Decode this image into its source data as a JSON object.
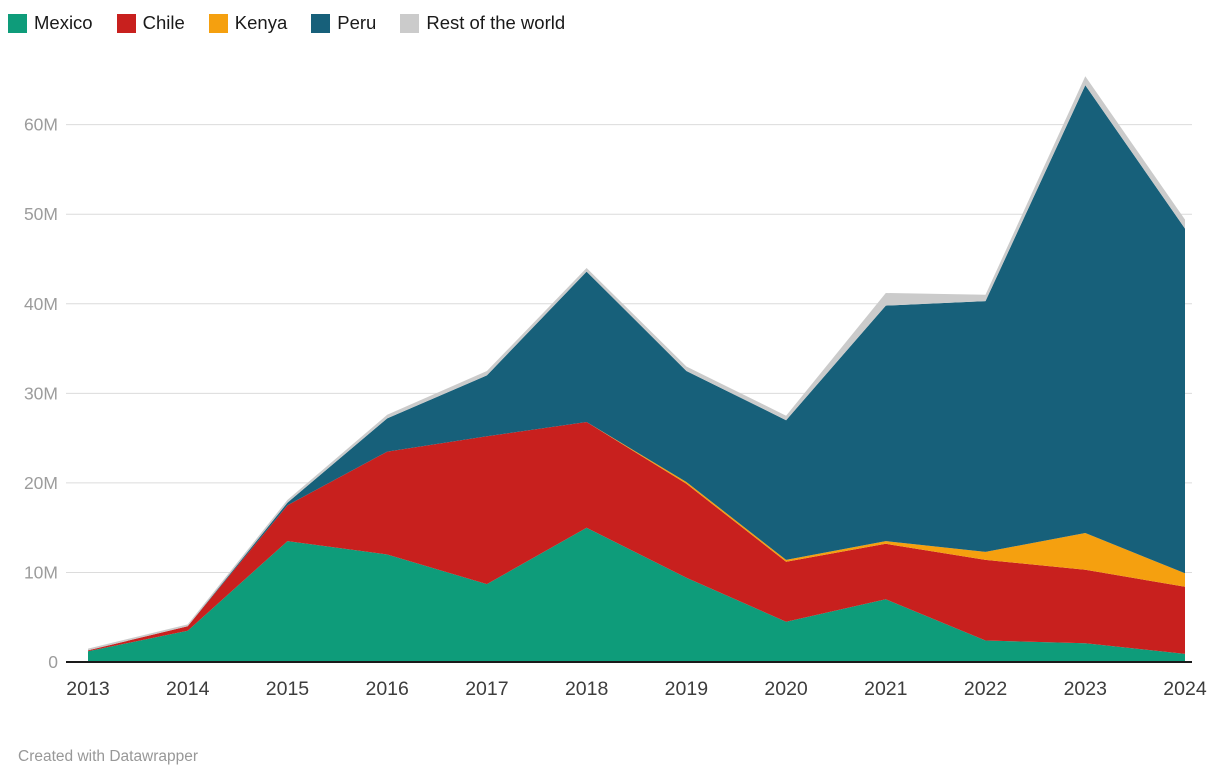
{
  "legend": {
    "items": [
      {
        "label": "Mexico",
        "color": "#0e9c7a"
      },
      {
        "label": "Chile",
        "color": "#c8201e"
      },
      {
        "label": "Kenya",
        "color": "#f5a00f"
      },
      {
        "label": "Peru",
        "color": "#17607a"
      },
      {
        "label": "Rest of the world",
        "color": "#cbcbcb"
      }
    ]
  },
  "footer": {
    "attribution": "Created with Datawrapper"
  },
  "chart_data": {
    "type": "area",
    "stacked": true,
    "title": "",
    "xlabel": "",
    "ylabel": "",
    "unit": "M",
    "grid": "horizontal",
    "legend_position": "top-left",
    "x": [
      2013,
      2014,
      2015,
      2016,
      2017,
      2018,
      2019,
      2020,
      2021,
      2022,
      2023,
      2024
    ],
    "ylim": [
      0,
      67
    ],
    "yticks": [
      {
        "value": 0,
        "label": "0"
      },
      {
        "value": 10,
        "label": "10M"
      },
      {
        "value": 20,
        "label": "20M"
      },
      {
        "value": 30,
        "label": "30M"
      },
      {
        "value": 40,
        "label": "40M"
      },
      {
        "value": 50,
        "label": "50M"
      },
      {
        "value": 60,
        "label": "60M"
      }
    ],
    "series": [
      {
        "name": "Mexico",
        "color": "#0e9c7a",
        "values": [
          1.2,
          3.5,
          13.5,
          12.0,
          8.7,
          15.0,
          9.4,
          4.5,
          7.0,
          2.4,
          2.1,
          0.9
        ]
      },
      {
        "name": "Chile",
        "color": "#c8201e",
        "values": [
          0.1,
          0.5,
          4.0,
          11.5,
          16.5,
          11.8,
          10.5,
          6.7,
          6.2,
          9.0,
          8.2,
          7.5
        ]
      },
      {
        "name": "Kenya",
        "color": "#f5a00f",
        "values": [
          0,
          0,
          0,
          0,
          0,
          0,
          0.2,
          0.2,
          0.3,
          0.9,
          4.1,
          1.5
        ]
      },
      {
        "name": "Peru",
        "color": "#17607a",
        "values": [
          0,
          0,
          0.3,
          3.7,
          6.8,
          16.8,
          12.4,
          15.6,
          26.3,
          28.0,
          50.0,
          38.5
        ]
      },
      {
        "name": "Rest of the world",
        "color": "#cbcbcb",
        "values": [
          0.2,
          0.2,
          0.3,
          0.4,
          0.5,
          0.4,
          0.5,
          0.5,
          1.4,
          0.7,
          1.0,
          1.0
        ]
      }
    ]
  }
}
